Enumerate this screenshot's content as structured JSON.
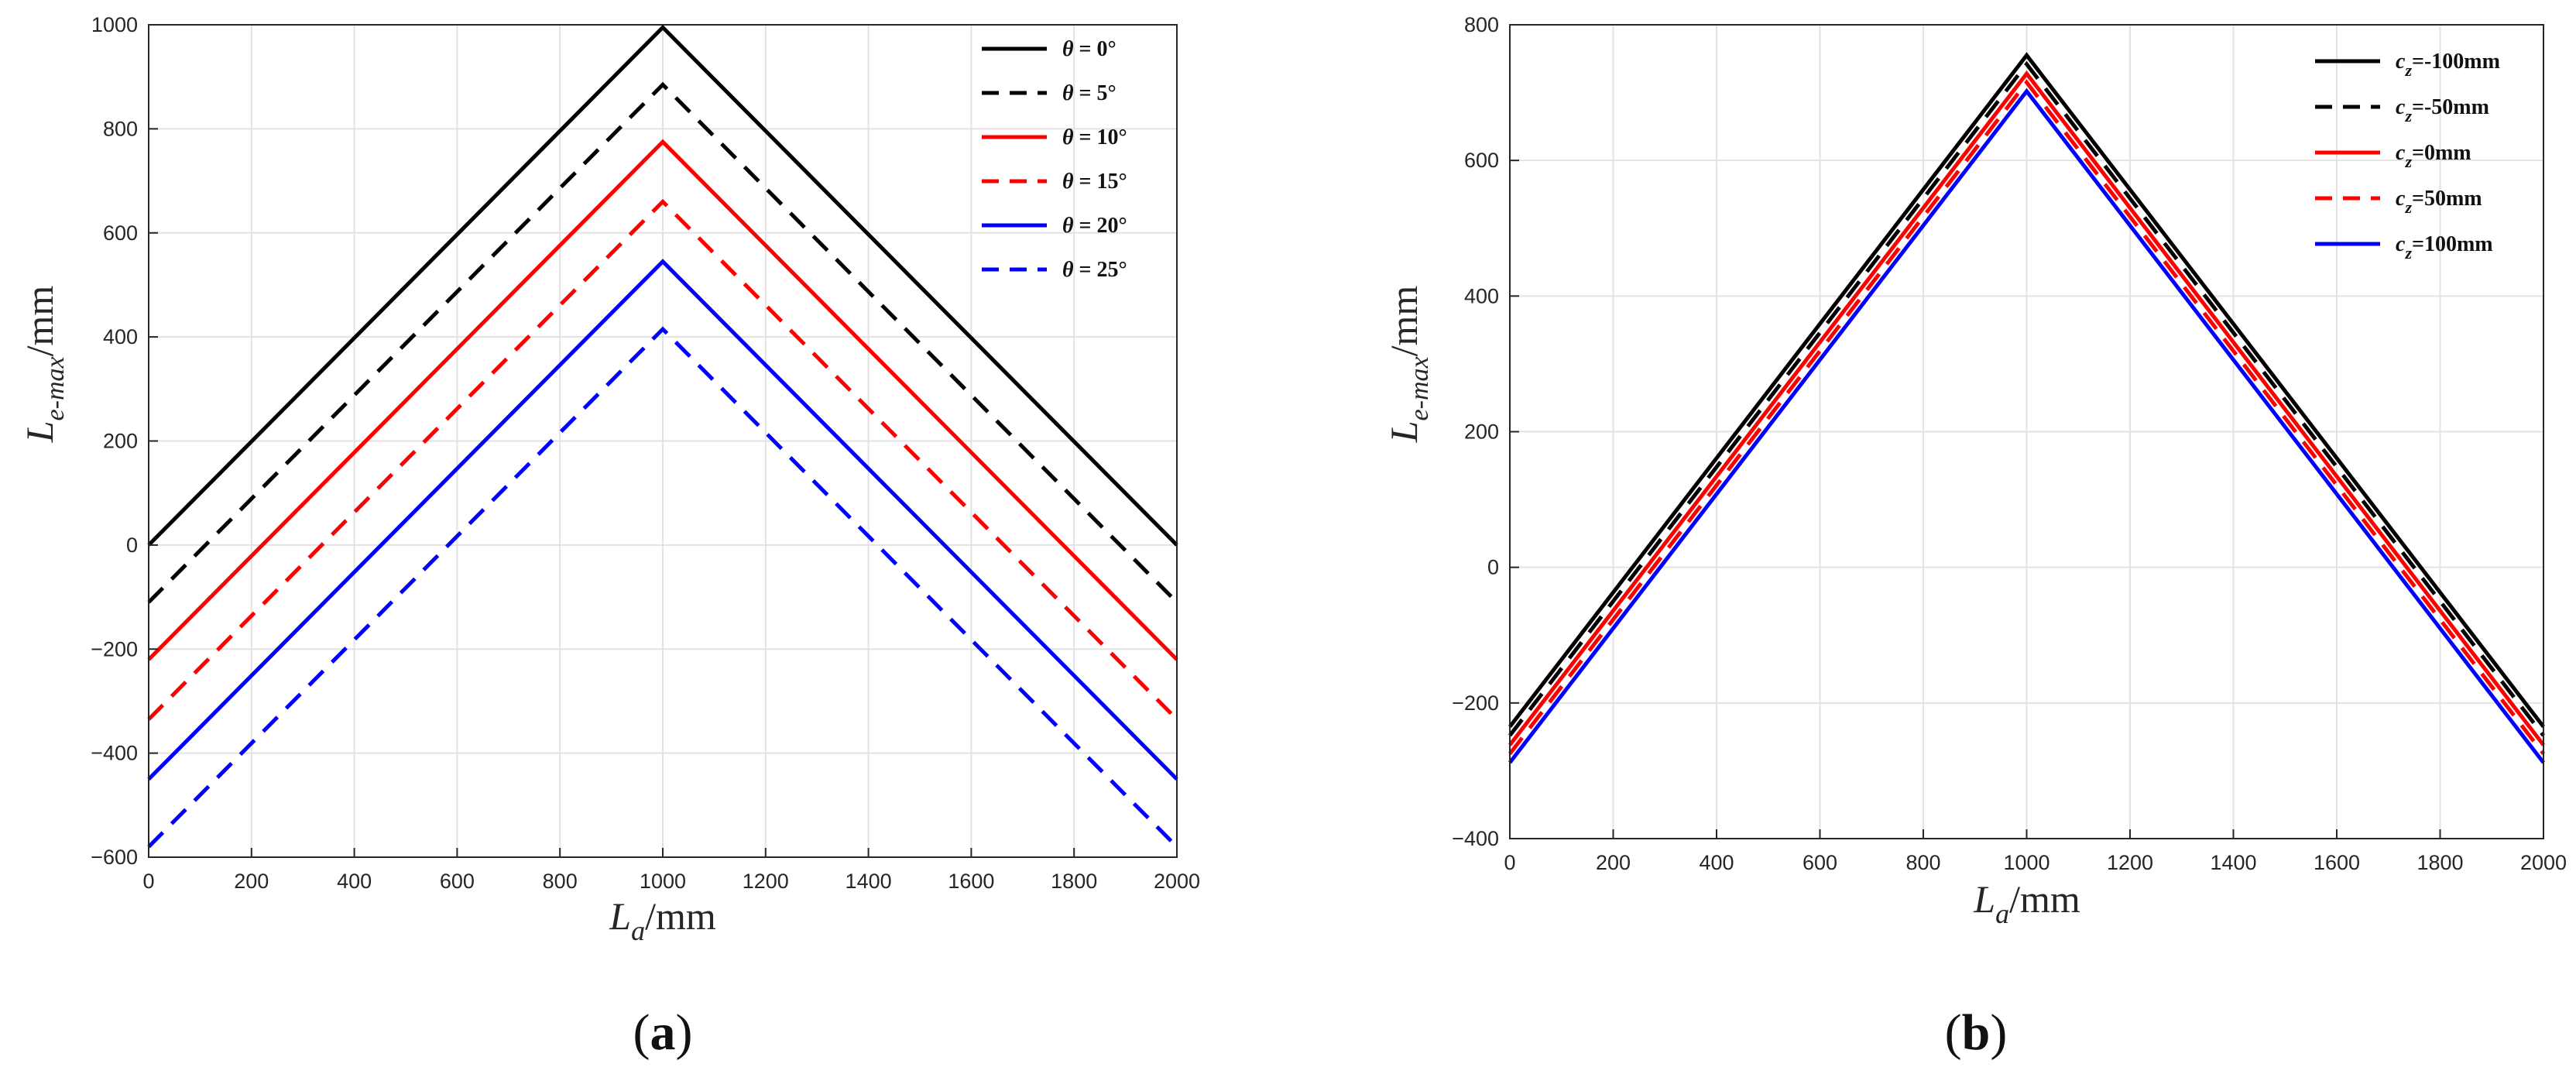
{
  "chart_data": [
    {
      "id": "a",
      "type": "line",
      "panel_label": {
        "open": "(",
        "letter": "a",
        "close": ")"
      },
      "xlabel": {
        "symbol": "L",
        "sub": "a",
        "unit": "/mm"
      },
      "ylabel": {
        "symbol": "L",
        "sub": "e-max",
        "unit": "/mm"
      },
      "xlim": [
        0,
        2000
      ],
      "ylim": [
        -600,
        1000
      ],
      "xticks": [
        0,
        200,
        400,
        600,
        800,
        1000,
        1200,
        1400,
        1600,
        1800,
        2000
      ],
      "yticks": [
        -600,
        -400,
        -200,
        0,
        200,
        400,
        600,
        800,
        1000
      ],
      "grid": true,
      "legend": {
        "position": "top-right",
        "symbol": "θ",
        "sep": " = "
      },
      "series": [
        {
          "name": "0°",
          "color": "#000000",
          "dash": "solid",
          "x": [
            0,
            1000,
            2000
          ],
          "y": [
            0,
            995,
            0
          ]
        },
        {
          "name": "5°",
          "color": "#000000",
          "dash": "dashed",
          "x": [
            0,
            1000,
            2000
          ],
          "y": [
            -110,
            885,
            -110
          ]
        },
        {
          "name": "10°",
          "color": "#ff0000",
          "dash": "solid",
          "x": [
            0,
            1000,
            2000
          ],
          "y": [
            -220,
            775,
            -220
          ]
        },
        {
          "name": "15°",
          "color": "#ff0000",
          "dash": "dashed",
          "x": [
            0,
            1000,
            2000
          ],
          "y": [
            -335,
            660,
            -335
          ]
        },
        {
          "name": "20°",
          "color": "#0000ff",
          "dash": "solid",
          "x": [
            0,
            1000,
            2000
          ],
          "y": [
            -450,
            545,
            -450
          ]
        },
        {
          "name": "25°",
          "color": "#0000ff",
          "dash": "dashed",
          "x": [
            0,
            1000,
            2000
          ],
          "y": [
            -580,
            415,
            -580
          ]
        }
      ]
    },
    {
      "id": "b",
      "type": "line",
      "panel_label": {
        "open": "(",
        "letter": "b",
        "close": ")"
      },
      "xlabel": {
        "symbol": "L",
        "sub": "a",
        "unit": "/mm"
      },
      "ylabel": {
        "symbol": "L",
        "sub": "e-max",
        "unit": "/mm"
      },
      "xlim": [
        0,
        2000
      ],
      "ylim": [
        -400,
        800
      ],
      "xticks": [
        0,
        200,
        400,
        600,
        800,
        1000,
        1200,
        1400,
        1600,
        1800,
        2000
      ],
      "yticks": [
        -400,
        -200,
        0,
        200,
        400,
        600,
        800
      ],
      "grid": true,
      "legend": {
        "position": "top-right",
        "symbol": "c",
        "sub": "z",
        "sep": "="
      },
      "series": [
        {
          "name": "-100mm",
          "color": "#000000",
          "dash": "solid",
          "x": [
            0,
            1000,
            2000
          ],
          "y": [
            -235,
            755,
            -235
          ]
        },
        {
          "name": "-50mm",
          "color": "#000000",
          "dash": "dashed",
          "x": [
            0,
            1000,
            2000
          ],
          "y": [
            -248,
            742,
            -248
          ]
        },
        {
          "name": "0mm",
          "color": "#ff0000",
          "dash": "solid",
          "x": [
            0,
            1000,
            2000
          ],
          "y": [
            -262,
            728,
            -262
          ]
        },
        {
          "name": "50mm",
          "color": "#ff0000",
          "dash": "dashed",
          "x": [
            0,
            1000,
            2000
          ],
          "y": [
            -275,
            715,
            -275
          ]
        },
        {
          "name": "100mm",
          "color": "#0000ff",
          "dash": "solid",
          "x": [
            0,
            1000,
            2000
          ],
          "y": [
            -288,
            702,
            -288
          ]
        }
      ]
    }
  ]
}
